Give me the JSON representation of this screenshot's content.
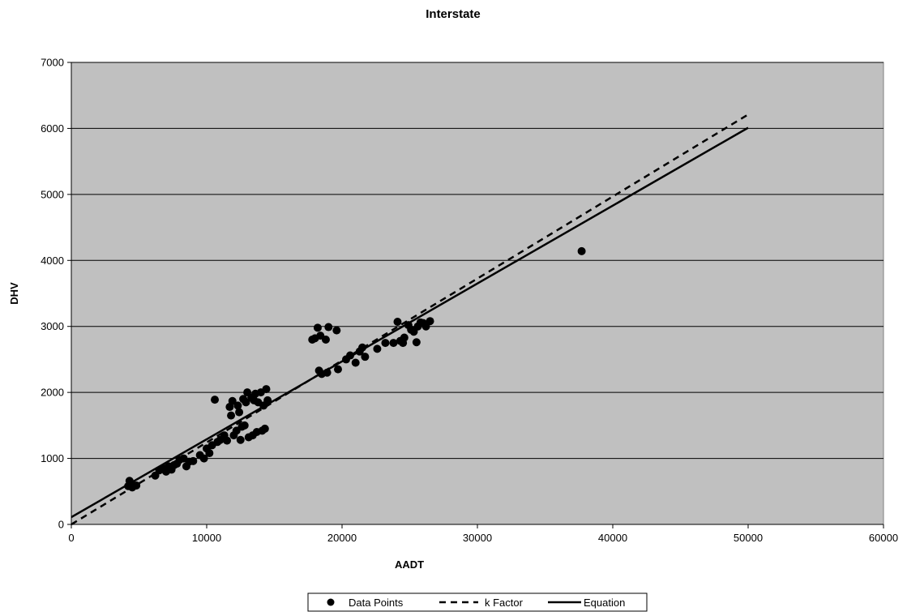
{
  "chart_data": {
    "type": "scatter",
    "title": "Interstate",
    "xlabel": "AADT",
    "ylabel": "DHV",
    "xlim": [
      0,
      60000
    ],
    "ylim": [
      0,
      7000
    ],
    "xticks": [
      0,
      10000,
      20000,
      30000,
      40000,
      50000,
      60000
    ],
    "yticks": [
      0,
      1000,
      2000,
      3000,
      4000,
      5000,
      6000,
      7000
    ],
    "grid": "horizontal",
    "plot_background": "#c0c0c0",
    "legend_position": "bottom",
    "series": [
      {
        "name": "Data Points",
        "kind": "scatter",
        "color": "#000000",
        "points": [
          [
            4200,
            580
          ],
          [
            4400,
            600
          ],
          [
            4300,
            660
          ],
          [
            4600,
            590
          ],
          [
            4800,
            590
          ],
          [
            4500,
            560
          ],
          [
            6200,
            740
          ],
          [
            6500,
            820
          ],
          [
            6800,
            850
          ],
          [
            7000,
            800
          ],
          [
            7200,
            880
          ],
          [
            7400,
            830
          ],
          [
            7600,
            900
          ],
          [
            7800,
            920
          ],
          [
            8000,
            980
          ],
          [
            8300,
            1000
          ],
          [
            8500,
            880
          ],
          [
            8700,
            950
          ],
          [
            9000,
            960
          ],
          [
            9500,
            1050
          ],
          [
            9800,
            1000
          ],
          [
            10000,
            1150
          ],
          [
            10200,
            1080
          ],
          [
            10400,
            1200
          ],
          [
            10600,
            1890
          ],
          [
            10800,
            1250
          ],
          [
            11000,
            1280
          ],
          [
            11300,
            1350
          ],
          [
            11500,
            1270
          ],
          [
            11700,
            1780
          ],
          [
            11900,
            1870
          ],
          [
            11800,
            1650
          ],
          [
            12000,
            1350
          ],
          [
            12200,
            1420
          ],
          [
            12300,
            1800
          ],
          [
            12400,
            1700
          ],
          [
            12500,
            1280
          ],
          [
            12600,
            1480
          ],
          [
            12800,
            1500
          ],
          [
            12700,
            1900
          ],
          [
            12900,
            1850
          ],
          [
            13000,
            2000
          ],
          [
            13100,
            1320
          ],
          [
            13300,
            1920
          ],
          [
            13400,
            1350
          ],
          [
            13500,
            1880
          ],
          [
            13600,
            1980
          ],
          [
            13700,
            1400
          ],
          [
            13800,
            1850
          ],
          [
            14000,
            2000
          ],
          [
            14100,
            1420
          ],
          [
            14200,
            1800
          ],
          [
            14400,
            2050
          ],
          [
            14500,
            1880
          ],
          [
            14300,
            1450
          ],
          [
            17800,
            2800
          ],
          [
            18000,
            2820
          ],
          [
            18200,
            2980
          ],
          [
            18400,
            2860
          ],
          [
            18300,
            2330
          ],
          [
            18500,
            2280
          ],
          [
            18800,
            2800
          ],
          [
            18900,
            2300
          ],
          [
            19000,
            2990
          ],
          [
            19600,
            2940
          ],
          [
            19700,
            2350
          ],
          [
            20300,
            2500
          ],
          [
            20600,
            2560
          ],
          [
            21000,
            2450
          ],
          [
            21300,
            2620
          ],
          [
            21500,
            2680
          ],
          [
            21700,
            2540
          ],
          [
            22600,
            2660
          ],
          [
            23200,
            2750
          ],
          [
            23800,
            2750
          ],
          [
            24100,
            3070
          ],
          [
            24300,
            2780
          ],
          [
            24600,
            2830
          ],
          [
            24500,
            2750
          ],
          [
            24900,
            3020
          ],
          [
            25100,
            2950
          ],
          [
            25300,
            2920
          ],
          [
            25500,
            2760
          ],
          [
            25600,
            3000
          ],
          [
            25800,
            3060
          ],
          [
            26000,
            3050
          ],
          [
            26200,
            3000
          ],
          [
            26500,
            3080
          ],
          [
            37700,
            4140
          ]
        ]
      },
      {
        "name": "k Factor",
        "kind": "line",
        "style": "dashed",
        "color": "#000000",
        "points": [
          [
            0,
            0
          ],
          [
            50000,
            6210
          ]
        ]
      },
      {
        "name": "Equation",
        "kind": "line",
        "style": "solid",
        "color": "#000000",
        "points": [
          [
            0,
            110
          ],
          [
            50000,
            6010
          ]
        ]
      }
    ]
  }
}
